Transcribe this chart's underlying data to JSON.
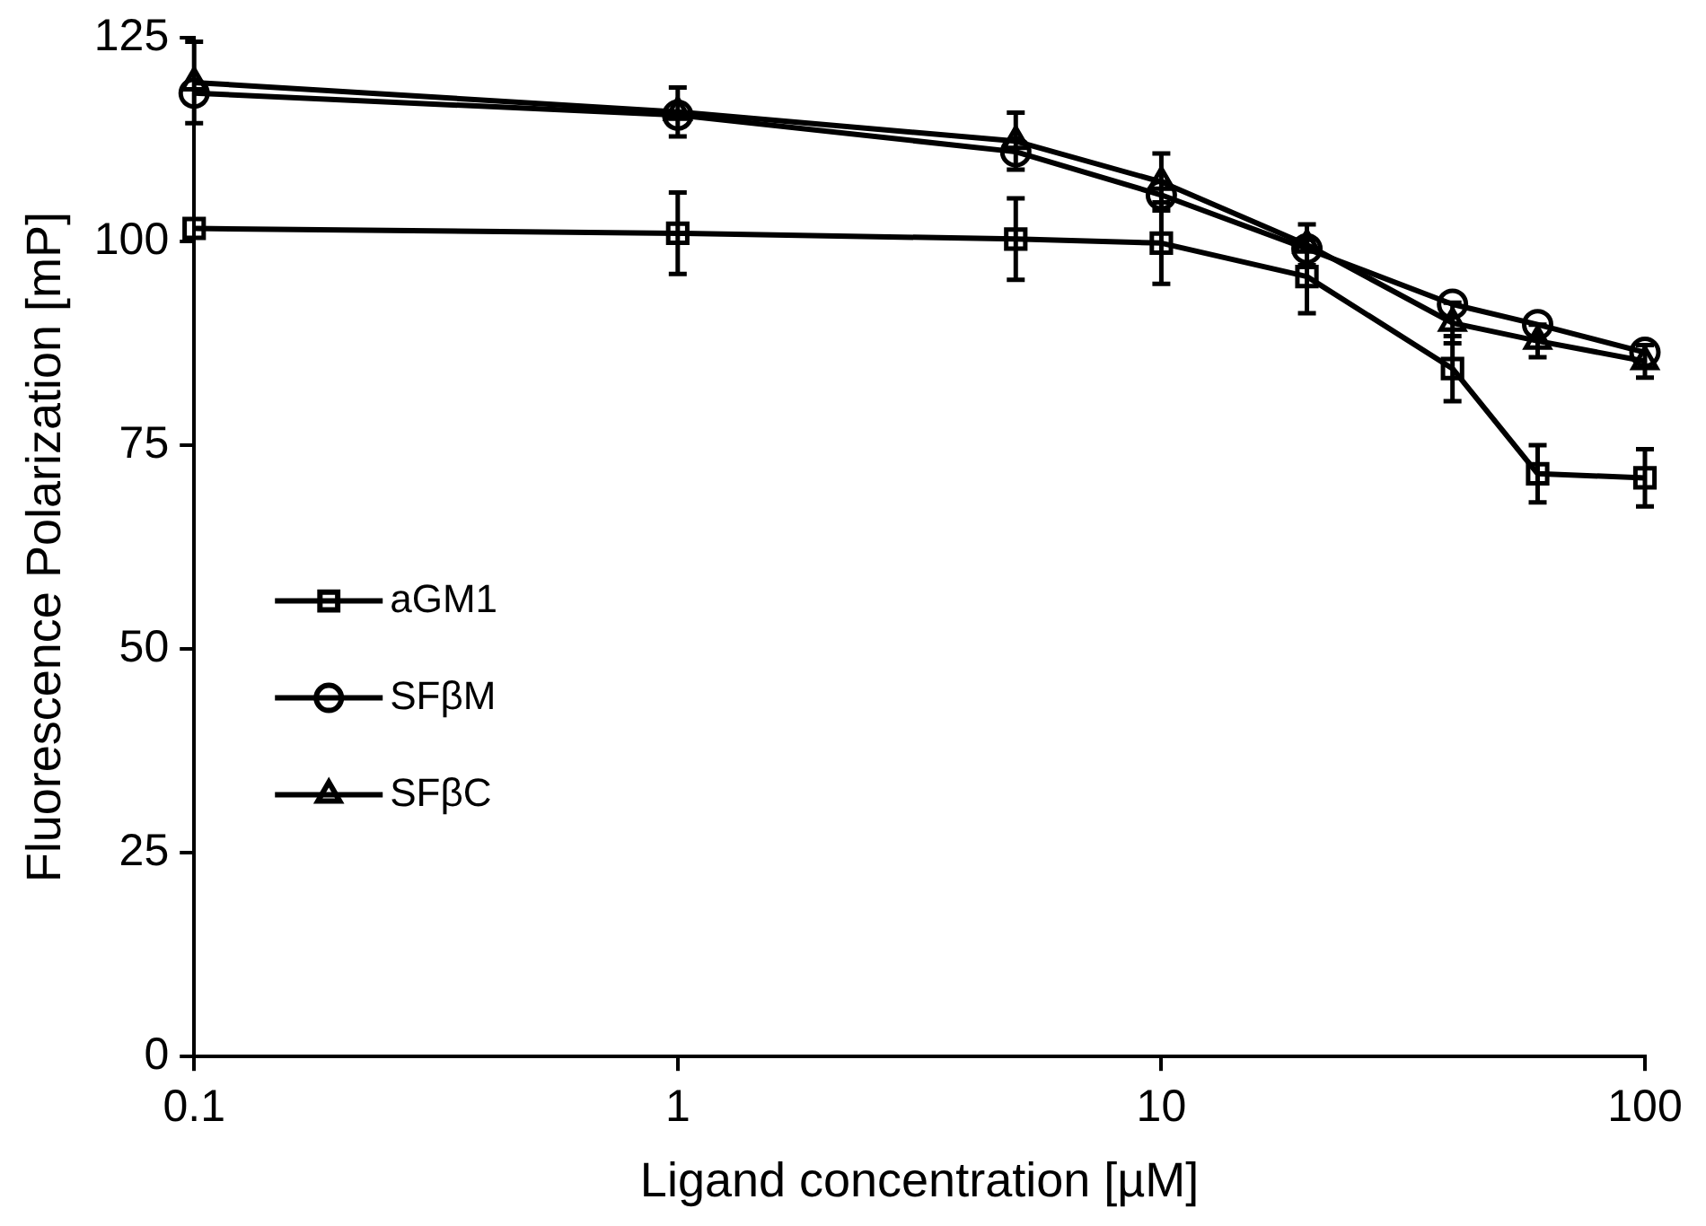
{
  "chart_data": {
    "type": "line",
    "xlabel": "Ligand concentration [µM]",
    "ylabel": "Fluorescence Polarization [mP]",
    "x": [
      0.1,
      1,
      5,
      10,
      20,
      40,
      60,
      100
    ],
    "series": [
      {
        "name": "aGM1",
        "color": "#000000",
        "marker": "square",
        "values": [
          101.6,
          101,
          100.3,
          99.8,
          95.7,
          84.4,
          71.5,
          71
        ],
        "errors": [
          null,
          5,
          5,
          5,
          4.5,
          4,
          3.5,
          3.5
        ]
      },
      {
        "name": "SFβM",
        "color": "#000000",
        "marker": "circle",
        "values": [
          118.2,
          115.5,
          111,
          105.7,
          99.1,
          92.3,
          89.8,
          86.4
        ],
        "errors": [
          null,
          null,
          null,
          null,
          null,
          null,
          null,
          null
        ]
      },
      {
        "name": "SFβC",
        "color": "#000000",
        "marker": "triangle",
        "values": [
          119.5,
          115.9,
          112.3,
          107.3,
          99.6,
          90,
          87.8,
          85.3
        ],
        "errors": [
          5,
          3,
          3.5,
          3.5,
          2.5,
          2.5,
          2,
          2
        ]
      }
    ],
    "log": "x",
    "xlim": [
      0.1,
      100
    ],
    "xticks": [
      0.1,
      1,
      10,
      100
    ],
    "ylim": [
      0,
      125
    ],
    "yticks": [
      0,
      25,
      50,
      75,
      100,
      125
    ],
    "grid": false,
    "legend": "left",
    "line_style": "solid"
  }
}
